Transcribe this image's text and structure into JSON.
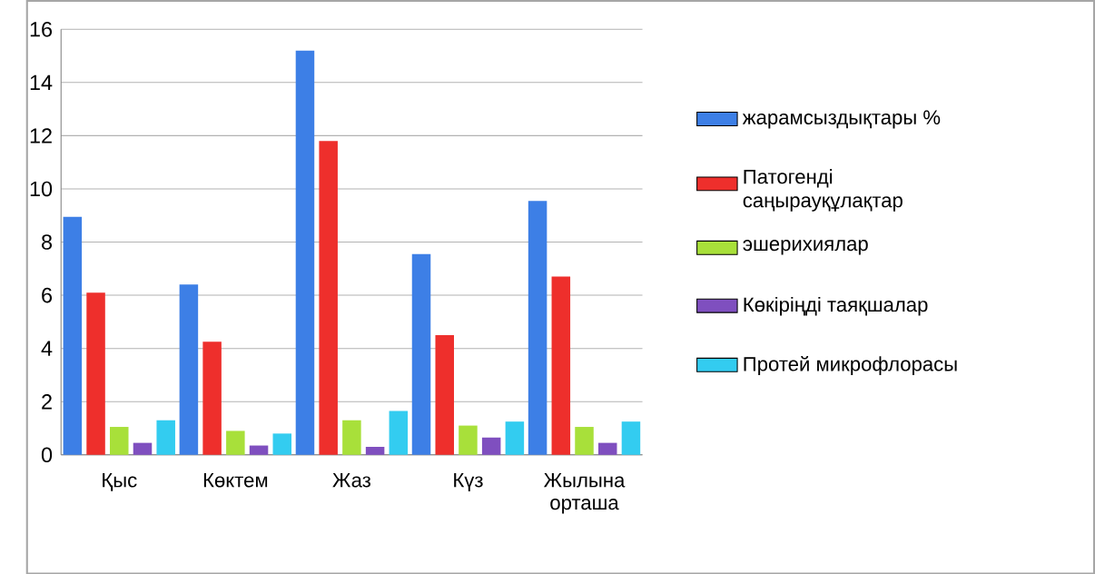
{
  "chart_data": {
    "type": "bar",
    "categories": [
      "Қыс",
      "Көктем",
      "Жаз",
      "Күз",
      "Жылына орташа"
    ],
    "series": [
      {
        "name": "жарамсыздықтары %",
        "color": "#3d7fe6",
        "values": [
          8.95,
          6.4,
          15.2,
          7.55,
          9.55
        ]
      },
      {
        "name": "Патогенді саңырауқұлақтар",
        "color": "#ee2f2c",
        "values": [
          6.1,
          4.25,
          11.8,
          4.5,
          6.7
        ]
      },
      {
        "name": "эшерихиялар",
        "color": "#a8e03a",
        "values": [
          1.05,
          0.9,
          1.3,
          1.1,
          1.05
        ]
      },
      {
        "name": "Көкіріңді таяқшалар",
        "color": "#7f4fbf",
        "values": [
          0.45,
          0.35,
          0.3,
          0.65,
          0.45
        ]
      },
      {
        "name": "Протей микрофлорасы",
        "color": "#33ccf0",
        "values": [
          1.3,
          0.8,
          1.65,
          1.25,
          1.25
        ]
      }
    ],
    "ylim": [
      0,
      16
    ],
    "yticks": [
      0,
      2,
      4,
      6,
      8,
      10,
      12,
      14,
      16
    ],
    "grid": "y",
    "legend": "right"
  }
}
